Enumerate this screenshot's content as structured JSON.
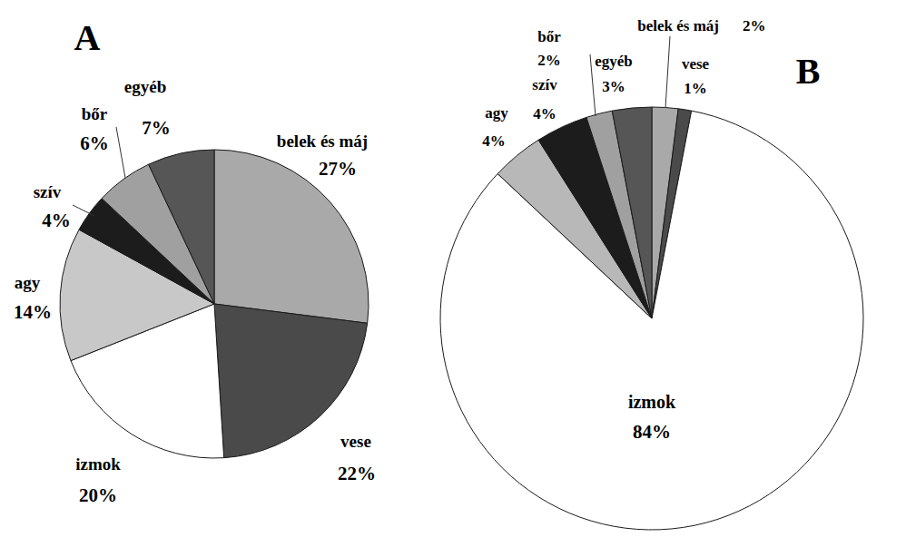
{
  "chart_data": [
    {
      "type": "pie",
      "title": "A",
      "categories": [
        "belek és máj",
        "vese",
        "izmok",
        "agy",
        "szív",
        "bőr",
        "egyéb"
      ],
      "values": [
        27,
        22,
        20,
        14,
        4,
        6,
        7
      ],
      "value_labels": [
        "27%",
        "22%",
        "20%",
        "14%",
        "4%",
        "6%",
        "7%"
      ],
      "colors": [
        "#a9a9a9",
        "#4a4a4a",
        "#ffffff",
        "#c8c8c8",
        "#1c1c1c",
        "#a0a0a0",
        "#565656"
      ],
      "data_labels": true
    },
    {
      "type": "pie",
      "title": "B",
      "categories": [
        "belek és máj",
        "vese",
        "izmok",
        "agy",
        "szív",
        "bőr",
        "egyéb"
      ],
      "values": [
        2,
        1,
        84,
        4,
        4,
        2,
        3
      ],
      "value_labels": [
        "2%",
        "1%",
        "84%",
        "4%",
        "4%",
        "2%",
        "3%"
      ],
      "colors": [
        "#a9a9a9",
        "#4a4a4a",
        "#ffffff",
        "#b8b8b8",
        "#1c1c1c",
        "#a0a0a0",
        "#565656"
      ],
      "data_labels": true
    }
  ]
}
